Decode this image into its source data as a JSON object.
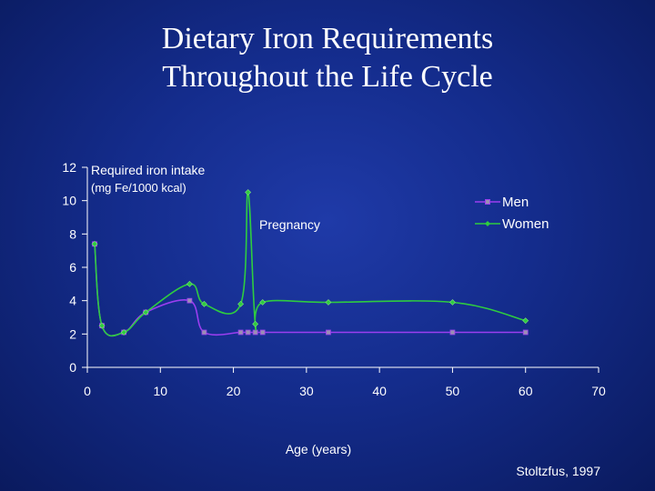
{
  "slide": {
    "title_line1": "Dietary Iron Requirements",
    "title_line2": "Throughout the Life Cycle",
    "source": "Stoltzfus, 1997"
  },
  "colors": {
    "men": "#9b3ef0",
    "women": "#2ecc40",
    "axis": "#ffffff"
  },
  "chart_data": {
    "type": "line",
    "title": "",
    "ylabel_line1": "Required iron intake",
    "ylabel_line2": "(mg Fe/1000 kcal)",
    "xlabel": "Age (years)",
    "annotation": "Pregnancy",
    "xlim": [
      0,
      70
    ],
    "ylim": [
      0,
      12
    ],
    "xticks": [
      0,
      10,
      20,
      30,
      40,
      50,
      60,
      70
    ],
    "yticks": [
      0,
      2,
      4,
      6,
      8,
      10,
      12
    ],
    "legend_position": "top-right",
    "series": [
      {
        "name": "Men",
        "marker": "square",
        "x": [
          1,
          2,
          5,
          8,
          14,
          16,
          21,
          22,
          23,
          24,
          33,
          50,
          60
        ],
        "y": [
          7.4,
          2.5,
          2.1,
          3.3,
          4.0,
          2.1,
          2.1,
          2.1,
          2.1,
          2.1,
          2.1,
          2.1,
          2.1
        ]
      },
      {
        "name": "Women",
        "marker": "diamond",
        "x": [
          1,
          2,
          5,
          8,
          14,
          16,
          21,
          22,
          23,
          24,
          33,
          50,
          60
        ],
        "y": [
          7.4,
          2.5,
          2.1,
          3.3,
          5.0,
          3.8,
          3.8,
          10.5,
          2.6,
          3.9,
          3.9,
          3.9,
          2.8
        ]
      }
    ]
  }
}
